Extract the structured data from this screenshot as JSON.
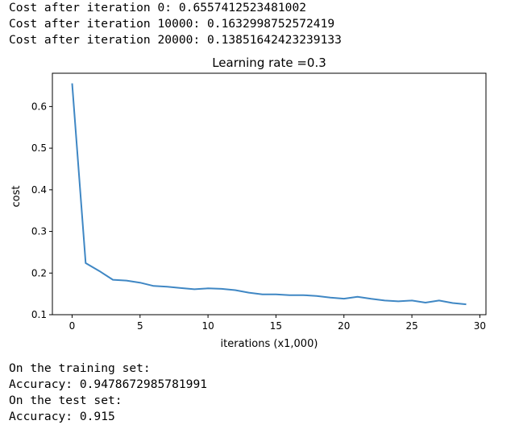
{
  "log_lines": [
    "Cost after iteration 0: 0.6557412523481002",
    "Cost after iteration 10000: 0.1632998752572419",
    "Cost after iteration 20000: 0.13851642423239133"
  ],
  "result_lines": [
    "On the training set:",
    "Accuracy: 0.9478672985781991",
    "On the test set:",
    "Accuracy: 0.915"
  ],
  "chart_data": {
    "type": "line",
    "title": "Learning rate =0.3",
    "xlabel": "iterations (x1,000)",
    "ylabel": "cost",
    "xlim": [
      -1.45,
      30.45
    ],
    "ylim": [
      0.1,
      0.68
    ],
    "xticks": [
      0,
      5,
      10,
      15,
      20,
      25,
      30
    ],
    "yticks": [
      0.1,
      0.2,
      0.3,
      0.4,
      0.5,
      0.6
    ],
    "ytick_labels": [
      "0.1",
      "0.2",
      "0.3",
      "0.4",
      "0.5",
      "0.6"
    ],
    "grid": false,
    "line_color": "#3f87c4",
    "series": [
      {
        "x": [
          0,
          1,
          2,
          3,
          4,
          5,
          6,
          7,
          8,
          9,
          10,
          11,
          12,
          13,
          14,
          15,
          16,
          17,
          18,
          19,
          20,
          21,
          22,
          23,
          24,
          25,
          26,
          27,
          28,
          29
        ],
        "values": [
          0.6557,
          0.224,
          0.205,
          0.184,
          0.182,
          0.177,
          0.169,
          0.167,
          0.164,
          0.161,
          0.1633,
          0.162,
          0.159,
          0.153,
          0.149,
          0.149,
          0.147,
          0.147,
          0.145,
          0.141,
          0.1385,
          0.143,
          0.138,
          0.134,
          0.132,
          0.134,
          0.129,
          0.134,
          0.128,
          0.125
        ]
      }
    ]
  }
}
